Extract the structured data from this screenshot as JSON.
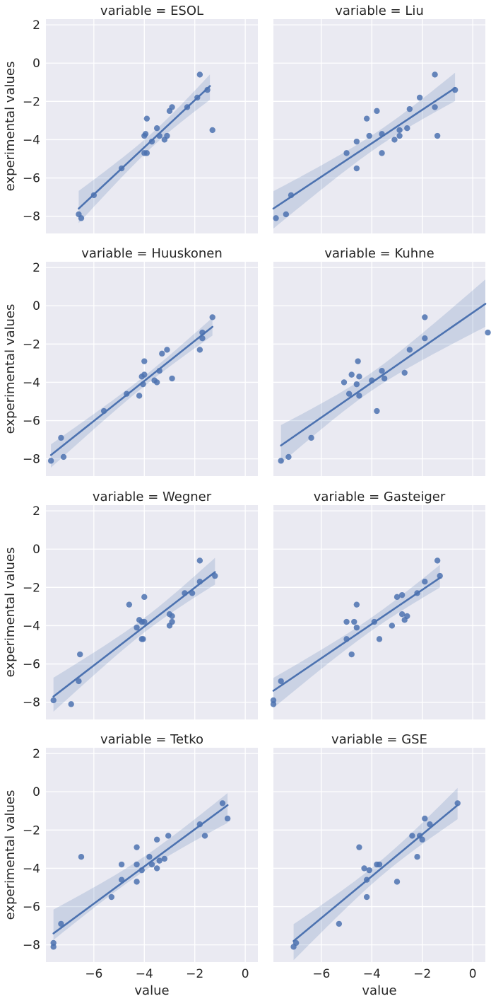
{
  "figure": {
    "xlabel": "value",
    "ylabel": "experimental values",
    "x_ticks": [
      -6,
      -4,
      -2,
      0
    ],
    "y_ticks": [
      -8,
      -6,
      -4,
      -2,
      0,
      2
    ],
    "xlim": [
      -7.9,
      0.5
    ],
    "ylim": [
      -8.9,
      2.3
    ],
    "colors": {
      "background": "#eaeaf2",
      "grid": "#ffffff",
      "series": "#4c72b0",
      "band": "#4c72b0"
    }
  },
  "chart_data": [
    {
      "type": "scatter",
      "title": "variable = ESOL",
      "x": [
        -6.6,
        -6.5,
        -6.0,
        -4.9,
        -4.0,
        -3.95,
        -3.9,
        -3.7,
        -3.5,
        -3.4,
        -3.2,
        -3.1,
        -3.0,
        -2.9,
        -2.3,
        -1.9,
        -1.8,
        -1.5,
        -1.3,
        -3.9,
        -4.0
      ],
      "y": [
        -7.9,
        -8.1,
        -6.9,
        -5.5,
        -3.8,
        -3.7,
        -2.9,
        -4.1,
        -3.4,
        -3.8,
        -4.0,
        -3.8,
        -2.5,
        -2.3,
        -2.3,
        -1.8,
        -0.6,
        -1.4,
        -3.5,
        -4.7,
        -4.7
      ],
      "fit": {
        "x": [
          -6.6,
          -1.4
        ],
        "y": [
          -7.6,
          -1.2
        ]
      }
    },
    {
      "type": "scatter",
      "title": "variable = Liu",
      "x": [
        -7.8,
        -7.4,
        -7.2,
        -5.0,
        -4.6,
        -4.6,
        -4.2,
        -4.1,
        -3.8,
        -3.6,
        -3.6,
        -3.1,
        -2.9,
        -2.9,
        -2.6,
        -2.5,
        -2.1,
        -1.5,
        -1.5,
        -1.4,
        -0.7
      ],
      "y": [
        -8.1,
        -7.9,
        -6.9,
        -4.7,
        -5.5,
        -4.1,
        -2.9,
        -3.8,
        -2.5,
        -3.7,
        -4.7,
        -4.0,
        -3.5,
        -3.8,
        -3.4,
        -2.4,
        -1.8,
        -0.6,
        -2.3,
        -3.8,
        -1.4
      ],
      "fit": {
        "x": [
          -7.9,
          -0.7
        ],
        "y": [
          -7.6,
          -1.3
        ]
      }
    },
    {
      "type": "scatter",
      "title": "variable = Huuskonen",
      "x": [
        -7.7,
        -7.3,
        -7.2,
        -5.6,
        -4.7,
        -4.2,
        -4.1,
        -4.05,
        -4.0,
        -4.0,
        -3.6,
        -3.5,
        -3.4,
        -3.3,
        -3.1,
        -2.9,
        -1.8,
        -1.7,
        -1.7,
        -1.3
      ],
      "y": [
        -8.1,
        -6.9,
        -7.9,
        -5.5,
        -4.6,
        -4.7,
        -3.7,
        -4.1,
        -3.6,
        -2.9,
        -3.9,
        -4.0,
        -3.4,
        -2.5,
        -2.3,
        -3.8,
        -2.3,
        -1.4,
        -1.7,
        -0.6
      ],
      "fit": {
        "x": [
          -7.7,
          -1.3
        ],
        "y": [
          -7.8,
          -1.1
        ]
      }
    },
    {
      "type": "scatter",
      "title": "variable = Kuhne",
      "x": [
        -7.6,
        -7.3,
        -6.4,
        -5.1,
        -4.9,
        -4.8,
        -4.6,
        -4.55,
        -4.5,
        -4.5,
        -4.0,
        -3.8,
        -3.6,
        -3.5,
        -2.7,
        -2.5,
        -1.9,
        -1.9,
        0.6
      ],
      "y": [
        -8.1,
        -7.9,
        -6.9,
        -4.0,
        -4.6,
        -3.6,
        -4.1,
        -2.9,
        -4.7,
        -3.7,
        -3.9,
        -5.5,
        -3.4,
        -3.8,
        -3.5,
        -2.3,
        -1.7,
        -0.6,
        -1.4
      ],
      "fit": {
        "x": [
          -7.6,
          0.5
        ],
        "y": [
          -7.3,
          0.1
        ]
      }
    },
    {
      "type": "scatter",
      "title": "variable = Wegner",
      "x": [
        -7.6,
        -6.9,
        -6.6,
        -6.55,
        -4.6,
        -4.3,
        -4.2,
        -4.1,
        -4.1,
        -4.05,
        -4.0,
        -4.0,
        -3.0,
        -3.0,
        -2.9,
        -2.9,
        -2.4,
        -2.1,
        -1.8,
        -1.8,
        -1.2
      ],
      "y": [
        -7.9,
        -8.1,
        -6.9,
        -5.5,
        -2.9,
        -4.1,
        -3.7,
        -4.7,
        -3.8,
        -4.7,
        -3.8,
        -2.5,
        -3.4,
        -4.0,
        -3.5,
        -3.8,
        -2.3,
        -2.3,
        -1.7,
        -0.6,
        -1.4
      ],
      "fit": {
        "x": [
          -7.6,
          -1.2
        ],
        "y": [
          -7.7,
          -1.2
        ]
      }
    },
    {
      "type": "scatter",
      "title": "variable = Gasteiger",
      "x": [
        -7.9,
        -7.9,
        -7.6,
        -5.0,
        -5.0,
        -4.8,
        -4.7,
        -4.6,
        -4.6,
        -3.9,
        -3.7,
        -3.2,
        -3.0,
        -2.8,
        -2.8,
        -2.7,
        -2.6,
        -2.2,
        -1.9,
        -1.4,
        -1.3
      ],
      "y": [
        -7.9,
        -8.1,
        -6.9,
        -3.8,
        -4.7,
        -5.5,
        -3.8,
        -2.9,
        -4.1,
        -3.8,
        -4.7,
        -4.0,
        -2.5,
        -2.4,
        -3.4,
        -3.7,
        -3.5,
        -2.3,
        -1.7,
        -0.6,
        -1.4
      ],
      "fit": {
        "x": [
          -7.9,
          -1.3
        ],
        "y": [
          -7.4,
          -1.5
        ]
      }
    },
    {
      "type": "scatter",
      "title": "variable = Tetko",
      "x": [
        -7.6,
        -7.6,
        -7.3,
        -6.5,
        -5.3,
        -4.9,
        -4.9,
        -4.3,
        -4.3,
        -4.3,
        -4.1,
        -3.8,
        -3.7,
        -3.5,
        -3.5,
        -3.4,
        -3.2,
        -3.05,
        -1.8,
        -1.6,
        -0.9,
        -0.7
      ],
      "y": [
        -8.1,
        -7.9,
        -6.9,
        -3.4,
        -5.5,
        -4.6,
        -3.8,
        -2.9,
        -3.8,
        -4.7,
        -4.1,
        -3.4,
        -3.8,
        -2.5,
        -4.0,
        -3.6,
        -3.5,
        -2.3,
        -1.7,
        -2.3,
        -0.6,
        -1.4
      ],
      "fit": {
        "x": [
          -7.6,
          -0.7
        ],
        "y": [
          -7.4,
          -0.7
        ]
      }
    },
    {
      "type": "scatter",
      "title": "variable = GSE",
      "x": [
        -7.1,
        -7.0,
        -5.3,
        -4.5,
        -4.3,
        -4.2,
        -4.2,
        -4.1,
        -3.8,
        -3.7,
        -3.0,
        -2.4,
        -2.2,
        -2.1,
        -2.0,
        -1.9,
        -1.7,
        -0.6
      ],
      "y": [
        -8.1,
        -7.9,
        -6.9,
        -2.9,
        -4.0,
        -5.5,
        -4.6,
        -4.1,
        -3.8,
        -3.8,
        -4.7,
        -2.3,
        -3.4,
        -2.3,
        -2.5,
        -1.4,
        -1.7,
        -0.6
      ],
      "fit": {
        "x": [
          -7.1,
          -0.6
        ],
        "y": [
          -7.8,
          -0.7
        ]
      }
    }
  ]
}
